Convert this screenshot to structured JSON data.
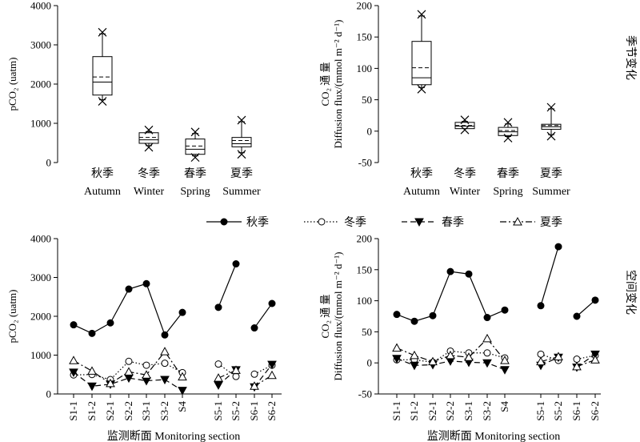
{
  "panels": {
    "seasonal_label": "季节变化",
    "spatial_label": "空间变化"
  },
  "chart_data": [
    {
      "type": "box",
      "ylabel": "pCO₂ (uatm)",
      "ylim": [
        0,
        4000
      ],
      "yticks": [
        0,
        1000,
        2000,
        3000,
        4000
      ],
      "categories": [
        {
          "zh": "秋季",
          "en": "Autumn"
        },
        {
          "zh": "冬季",
          "en": "Winter"
        },
        {
          "zh": "春季",
          "en": "Spring"
        },
        {
          "zh": "夏季",
          "en": "Summer"
        }
      ],
      "boxes": [
        {
          "min": 1560,
          "q1": 1720,
          "median": 2050,
          "mean": 2180,
          "q3": 2700,
          "max": 3320
        },
        {
          "min": 390,
          "q1": 490,
          "median": 580,
          "mean": 640,
          "q3": 760,
          "max": 830
        },
        {
          "min": 130,
          "q1": 210,
          "median": 340,
          "mean": 420,
          "q3": 600,
          "max": 780
        },
        {
          "min": 210,
          "q1": 400,
          "median": 480,
          "mean": 560,
          "q3": 640,
          "max": 1080
        }
      ]
    },
    {
      "type": "box",
      "ylabel_line1": "CO₂ 通 量",
      "ylabel_line2": "Diffusion flux/(mmol m⁻² d⁻¹)",
      "ylim": [
        -50,
        200
      ],
      "yticks": [
        -50,
        0,
        50,
        100,
        150,
        200
      ],
      "categories": [
        {
          "zh": "秋季",
          "en": "Autumn"
        },
        {
          "zh": "冬季",
          "en": "Winter"
        },
        {
          "zh": "春季",
          "en": "Spring"
        },
        {
          "zh": "夏季",
          "en": "Summer"
        }
      ],
      "boxes": [
        {
          "min": 67,
          "q1": 74,
          "median": 85,
          "mean": 101,
          "q3": 143,
          "max": 186
        },
        {
          "min": 2,
          "q1": 4,
          "median": 8,
          "mean": 9,
          "q3": 14,
          "max": 18
        },
        {
          "min": -11,
          "q1": -7,
          "median": -1,
          "mean": 1,
          "q3": 6,
          "max": 14
        },
        {
          "min": -8,
          "q1": 3,
          "median": 7,
          "mean": 9,
          "q3": 11,
          "max": 38
        }
      ]
    },
    {
      "type": "line",
      "ylabel": "pCO₂ (uatm)",
      "xlabel": "监测断面 Monitoring section",
      "ylim": [
        0,
        4000
      ],
      "yticks": [
        0,
        1000,
        2000,
        3000,
        4000
      ],
      "categories": [
        "S1-1",
        "S1-2",
        "S2-1",
        "S2-2",
        "S3-1",
        "S3-2",
        "S4",
        "S5-1",
        "S5-2",
        "S6-1",
        "S6-2"
      ],
      "segments": [
        [
          0,
          6
        ],
        [
          7,
          8
        ],
        [
          9,
          10
        ]
      ],
      "series": [
        {
          "name": "秋季",
          "marker": "filled-circle",
          "dash": "solid",
          "values": [
            1780,
            1560,
            1830,
            2700,
            2840,
            1520,
            2100,
            2230,
            3350,
            1700,
            2330
          ]
        },
        {
          "name": "冬季",
          "marker": "open-circle",
          "dash": "dotted",
          "values": [
            490,
            500,
            370,
            840,
            740,
            790,
            550,
            770,
            450,
            510,
            740
          ]
        },
        {
          "name": "春季",
          "marker": "filled-triangle-down",
          "dash": "dashed",
          "values": [
            560,
            200,
            250,
            410,
            340,
            370,
            90,
            230,
            620,
            180,
            760
          ]
        },
        {
          "name": "夏季",
          "marker": "open-triangle-up",
          "dash": "dashdot",
          "values": [
            860,
            590,
            270,
            570,
            490,
            1090,
            440,
            410,
            610,
            200,
            480
          ]
        }
      ]
    },
    {
      "type": "line",
      "ylabel_line1": "CO₂ 通 量",
      "ylabel_line2": "Diffusion flux/(mmol m⁻² d⁻¹)",
      "xlabel": "监测断面 Monitoring section",
      "ylim": [
        -50,
        200
      ],
      "yticks": [
        -50,
        0,
        50,
        100,
        150,
        200
      ],
      "categories": [
        "S1-1",
        "S1-2",
        "S2-1",
        "S2-2",
        "S3-1",
        "S3-2",
        "S4",
        "S5-1",
        "S5-2",
        "S6-1",
        "S6-2"
      ],
      "segments": [
        [
          0,
          6
        ],
        [
          7,
          8
        ],
        [
          9,
          10
        ]
      ],
      "series": [
        {
          "name": "秋季",
          "marker": "filled-circle",
          "dash": "solid",
          "values": [
            78,
            67,
            76,
            147,
            143,
            73,
            85,
            92,
            187,
            75,
            101
          ]
        },
        {
          "name": "冬季",
          "marker": "open-circle",
          "dash": "dotted",
          "values": [
            5,
            5,
            1,
            19,
            16,
            16,
            8,
            14,
            4,
            6,
            12
          ]
        },
        {
          "name": "春季",
          "marker": "filled-triangle-down",
          "dash": "dashed",
          "values": [
            7,
            -4,
            -3,
            3,
            1,
            0,
            -11,
            -4,
            9,
            -7,
            14
          ]
        },
        {
          "name": "夏季",
          "marker": "open-triangle-up",
          "dash": "dashdot",
          "values": [
            24,
            12,
            2,
            12,
            9,
            39,
            4,
            2,
            10,
            -6,
            5
          ]
        }
      ]
    }
  ]
}
